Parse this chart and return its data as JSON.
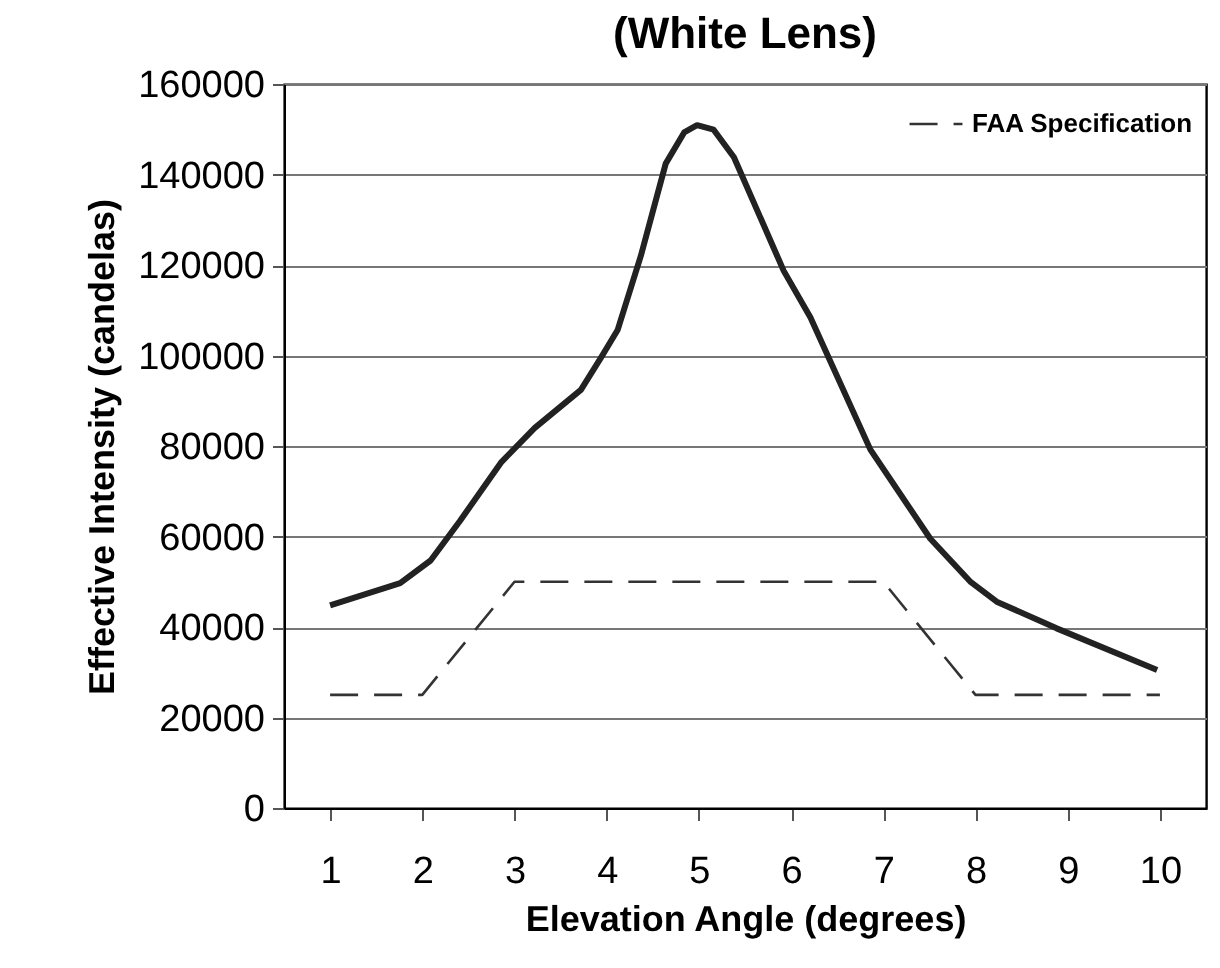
{
  "chart_data": {
    "type": "line",
    "title": "(White Lens)",
    "xlabel": "Elevation Angle (degrees)",
    "ylabel": "Effective Intensity (candelas)",
    "xlim": [
      0.5,
      10.5
    ],
    "xticks": [
      1,
      2,
      3,
      4,
      5,
      6,
      7,
      8,
      9,
      10
    ],
    "ylim": [
      0,
      160000
    ],
    "yticks": [
      0,
      20000,
      40000,
      60000,
      80000,
      100000,
      120000,
      140000,
      160000
    ],
    "grid": "y",
    "legend": "top right",
    "marker": "none",
    "series": [
      {
        "color": "#222222",
        "line_style": "solid",
        "x": [
          1,
          1.76,
          2.09,
          2.41,
          2.86,
          3.22,
          3.72,
          3.94,
          4.12,
          4.37,
          4.64,
          4.84,
          4.98,
          5.16,
          5.38,
          5.92,
          6.21,
          6.86,
          7.51,
          7.95,
          8.23,
          8.88,
          9.97
        ],
        "values": [
          44800,
          49700,
          54700,
          63500,
          76500,
          84000,
          92400,
          99600,
          105700,
          122000,
          142400,
          149300,
          150900,
          149900,
          143800,
          118700,
          108400,
          79200,
          59500,
          49900,
          45600,
          39700,
          30500
        ]
      },
      {
        "name": "FAA Specification",
        "color": "#333333",
        "line_style": "dashed",
        "x": [
          1,
          2,
          3,
          7,
          8,
          10
        ],
        "values": [
          25000,
          25000,
          50000,
          50000,
          25000,
          25000
        ]
      }
    ]
  }
}
